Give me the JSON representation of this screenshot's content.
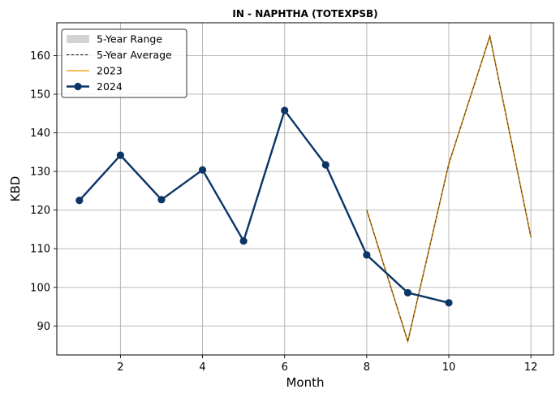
{
  "chart_data": {
    "type": "line",
    "title": "IN - NAPHTHA (TOTEXPSB)",
    "xlabel": "Month",
    "ylabel": "KBD",
    "xlim": [
      0.45,
      12.55
    ],
    "ylim": [
      82.5,
      168.5
    ],
    "xticks": [
      2,
      4,
      6,
      8,
      10,
      12
    ],
    "yticks": [
      90,
      100,
      110,
      120,
      130,
      140,
      150,
      160
    ],
    "grid": true,
    "legend_position": "top-left",
    "colors": {
      "range": "#d3d3d3",
      "average": "#000000",
      "y2023": "#f5a623",
      "y2023_overlap": "#c98a16",
      "y2024": "#0b3567"
    },
    "legend": [
      {
        "key": "range",
        "label": "5-Year Range"
      },
      {
        "key": "average",
        "label": "5-Year Average"
      },
      {
        "key": "y2023",
        "label": "2023"
      },
      {
        "key": "y2024",
        "label": "2024"
      }
    ],
    "series": [
      {
        "name": "5-Year Average",
        "style": "dashed",
        "x": [
          8,
          9,
          10,
          11,
          12
        ],
        "values": [
          120,
          86,
          132,
          165,
          113
        ]
      },
      {
        "name": "2023",
        "style": "solid",
        "x": [
          8,
          9,
          10,
          11,
          12
        ],
        "values": [
          120,
          86,
          132,
          165,
          113
        ]
      },
      {
        "name": "2024",
        "style": "solid-markers",
        "x": [
          1,
          2,
          3,
          4,
          5,
          6,
          7,
          8,
          9,
          10
        ],
        "values": [
          122.5,
          134.2,
          122.7,
          130.4,
          112,
          145.8,
          131.7,
          108.4,
          98.6,
          96
        ]
      }
    ]
  }
}
